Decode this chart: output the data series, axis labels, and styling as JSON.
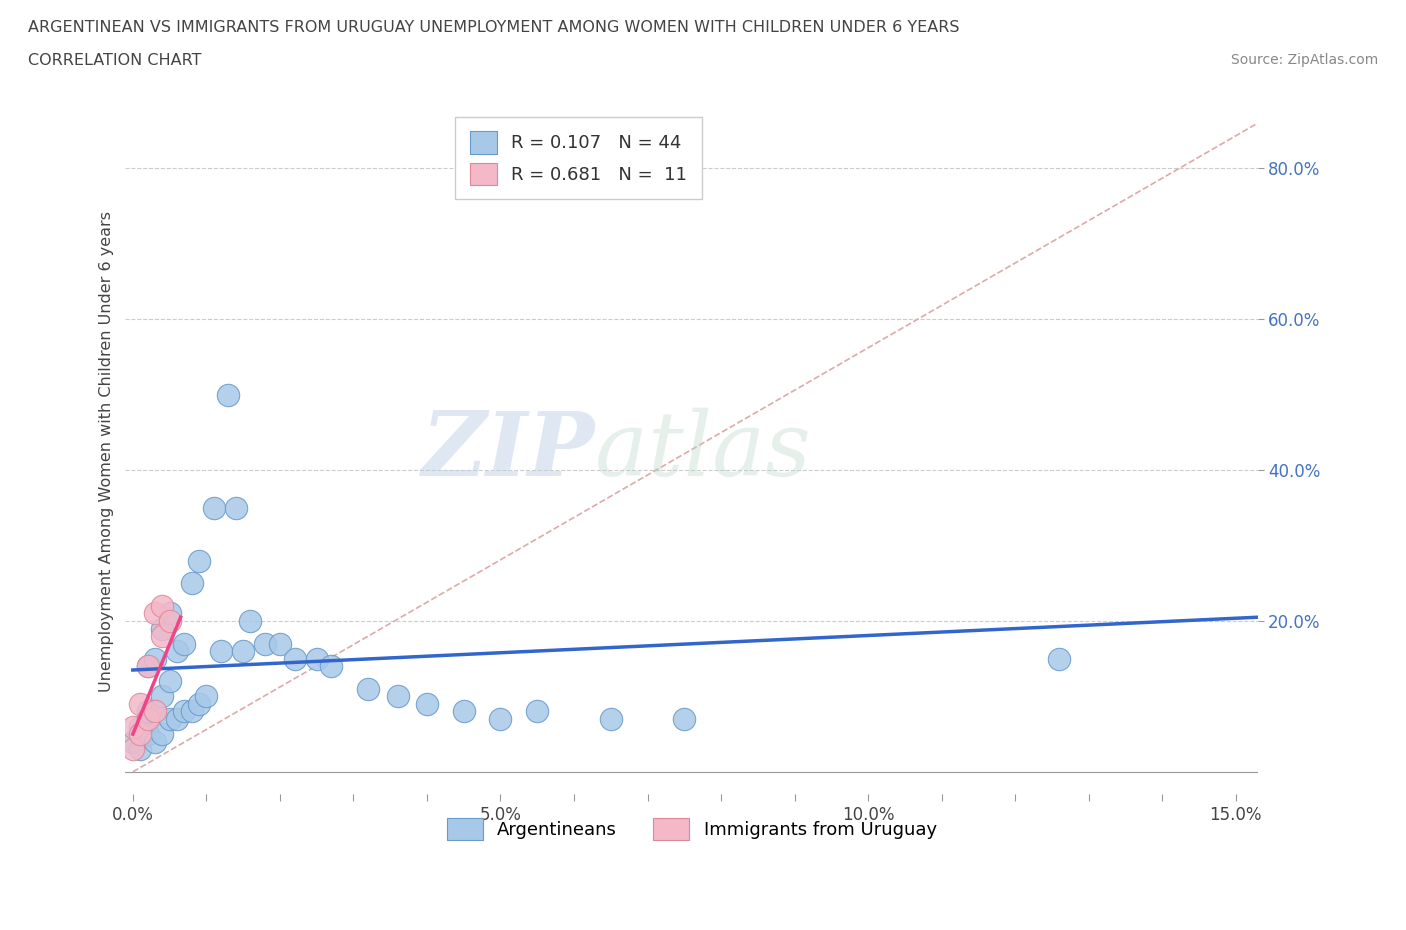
{
  "title_line1": "ARGENTINEAN VS IMMIGRANTS FROM URUGUAY UNEMPLOYMENT AMONG WOMEN WITH CHILDREN UNDER 6 YEARS",
  "title_line2": "CORRELATION CHART",
  "source_text": "Source: ZipAtlas.com",
  "ylabel": "Unemployment Among Women with Children Under 6 years",
  "xlim": [
    -0.001,
    0.153
  ],
  "ylim": [
    -0.03,
    0.88
  ],
  "xtick_labels": [
    "0.0%",
    "",
    "",
    "",
    "",
    "5.0%",
    "",
    "",
    "",
    "",
    "10.0%",
    "",
    "",
    "",
    "",
    "15.0%"
  ],
  "xtick_vals": [
    0.0,
    0.01,
    0.02,
    0.03,
    0.04,
    0.05,
    0.06,
    0.07,
    0.08,
    0.09,
    0.1,
    0.11,
    0.12,
    0.13,
    0.14,
    0.15
  ],
  "ytick_labels": [
    "20.0%",
    "40.0%",
    "60.0%",
    "80.0%"
  ],
  "ytick_vals": [
    0.2,
    0.4,
    0.6,
    0.8
  ],
  "arg_color": "#a8c8e8",
  "arg_edge": "#6699cc",
  "uru_color": "#f4b8c8",
  "uru_edge": "#dd8899",
  "trend_arg_color": "#3366cc",
  "trend_uru_color": "#ee4488",
  "diag_color": "#ddaaaa",
  "r_arg": 0.107,
  "n_arg": 44,
  "r_uru": 0.681,
  "n_uru": 11,
  "watermark1": "ZIP",
  "watermark2": "atlas",
  "background_color": "#ffffff",
  "grid_color": "#cccccc",
  "title_color": "#444444",
  "source_color": "#888888",
  "ytick_color": "#4472c4",
  "xtick_color": "#444444",
  "legend_label_arg": "Argentineans",
  "legend_label_uru": "Immigrants from Uruguay",
  "arg_x": [
    0.0,
    0.001,
    0.001,
    0.002,
    0.002,
    0.002,
    0.003,
    0.003,
    0.003,
    0.004,
    0.004,
    0.004,
    0.005,
    0.005,
    0.005,
    0.006,
    0.006,
    0.007,
    0.007,
    0.008,
    0.008,
    0.009,
    0.009,
    0.01,
    0.011,
    0.012,
    0.013,
    0.014,
    0.015,
    0.016,
    0.018,
    0.02,
    0.022,
    0.025,
    0.027,
    0.032,
    0.036,
    0.04,
    0.045,
    0.05,
    0.055,
    0.065,
    0.075,
    0.126
  ],
  "arg_y": [
    0.04,
    0.03,
    0.06,
    0.05,
    0.08,
    0.14,
    0.04,
    0.08,
    0.15,
    0.05,
    0.1,
    0.19,
    0.07,
    0.12,
    0.21,
    0.07,
    0.16,
    0.08,
    0.17,
    0.08,
    0.25,
    0.09,
    0.28,
    0.1,
    0.35,
    0.16,
    0.5,
    0.35,
    0.16,
    0.2,
    0.17,
    0.17,
    0.15,
    0.15,
    0.14,
    0.11,
    0.1,
    0.09,
    0.08,
    0.07,
    0.08,
    0.07,
    0.07,
    0.15
  ],
  "uru_x": [
    0.0,
    0.0,
    0.001,
    0.001,
    0.002,
    0.002,
    0.003,
    0.003,
    0.004,
    0.004,
    0.005
  ],
  "uru_y": [
    0.03,
    0.06,
    0.05,
    0.09,
    0.07,
    0.14,
    0.08,
    0.21,
    0.18,
    0.22,
    0.2
  ],
  "trend_arg_x0": 0.0,
  "trend_arg_x1": 0.153,
  "trend_arg_y0": 0.135,
  "trend_arg_y1": 0.205,
  "trend_uru_x0": 0.0,
  "trend_uru_x1": 0.0065,
  "trend_uru_y0": 0.05,
  "trend_uru_y1": 0.205
}
